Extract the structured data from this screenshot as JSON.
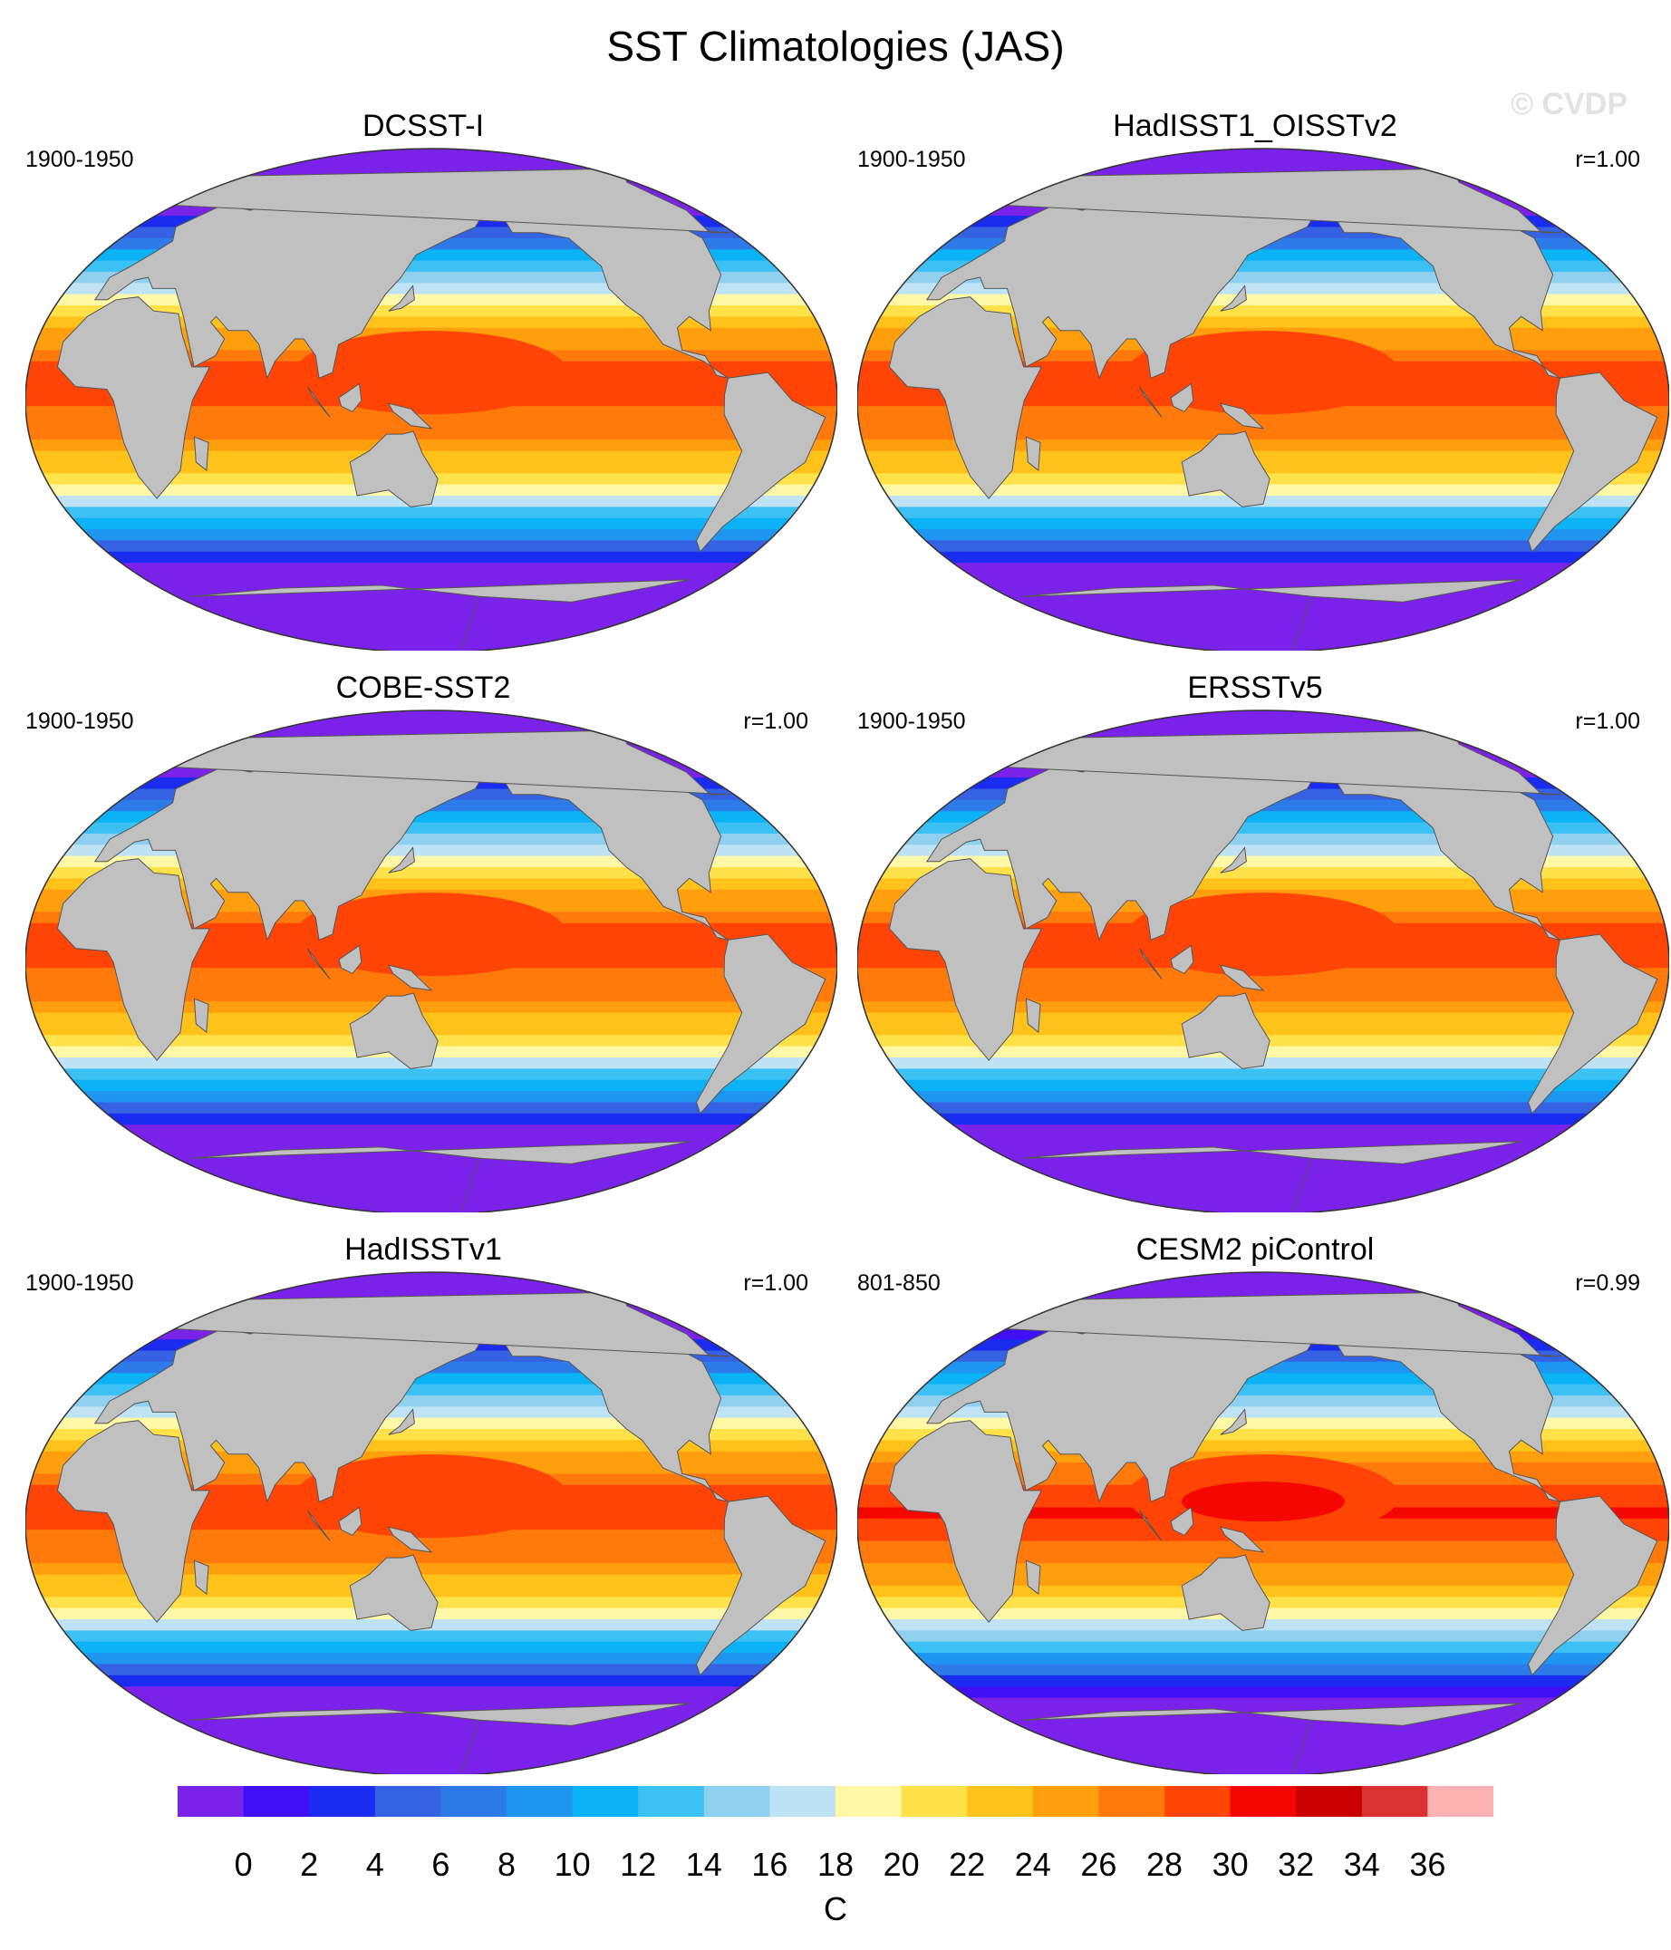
{
  "title": "SST Climatologies (JAS)",
  "watermark": "© CVDP",
  "panels": [
    {
      "name": "DCSST-I",
      "period": "1900-1950",
      "r": "",
      "variant": 0
    },
    {
      "name": "HadISST1_OISSTv2",
      "period": "1900-1950",
      "r": "r=1.00",
      "variant": 1
    },
    {
      "name": "COBE-SST2",
      "period": "1900-1950",
      "r": "r=1.00",
      "variant": 2
    },
    {
      "name": "ERSSTv5",
      "period": "1900-1950",
      "r": "r=1.00",
      "variant": 3
    },
    {
      "name": "HadISSTv1",
      "period": "1900-1950",
      "r": "r=1.00",
      "variant": 4
    },
    {
      "name": "CESM2 piControl",
      "period": "801-850",
      "r": "r=0.99",
      "variant": 5
    }
  ],
  "colorbar": {
    "unit": "C",
    "labels": [
      "0",
      "2",
      "4",
      "6",
      "8",
      "10",
      "12",
      "14",
      "16",
      "18",
      "20",
      "22",
      "24",
      "26",
      "28",
      "30",
      "32",
      "34",
      "36"
    ],
    "colors": [
      "#7b22ea",
      "#3f10f5",
      "#1a2cf0",
      "#3562e2",
      "#2c7be8",
      "#1e95f0",
      "#0cb2f6",
      "#3cc1f5",
      "#8fd0ef",
      "#bfe3f4",
      "#fff8a6",
      "#ffe24a",
      "#ffc21a",
      "#ff9f0e",
      "#ff7a0a",
      "#ff4406",
      "#f50600",
      "#c90000",
      "#da3232",
      "#ffb2b2"
    ]
  },
  "colors": {
    "land": "#c0c0c0",
    "coast": "#555555",
    "ice": "#ffffff"
  }
}
